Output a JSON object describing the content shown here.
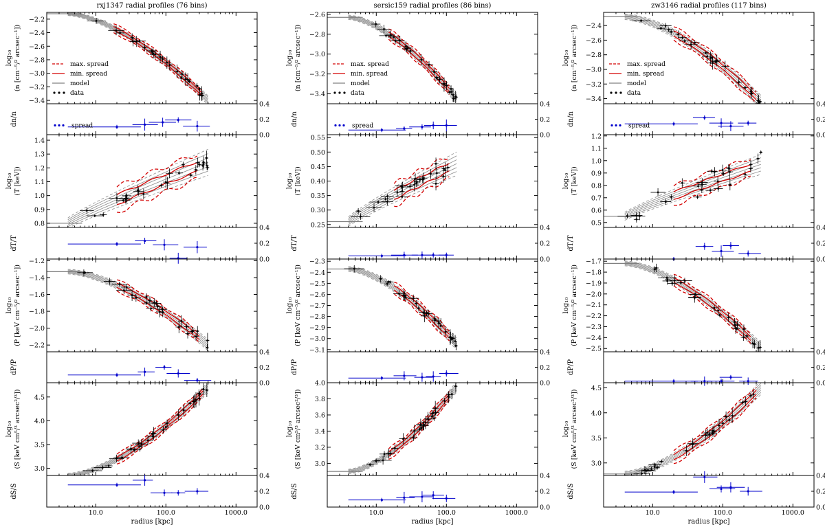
{
  "figure": {
    "xlabel": "radius [kpc]",
    "xticks": [
      "10.0",
      "100.0",
      "1000.0"
    ],
    "rows": [
      {
        "key": "n",
        "ylabel1": "log₁₀",
        "ylabel2": "(n [cm⁻⁵/² arcsec⁻¹])",
        "resid_label": "dn/n"
      },
      {
        "key": "T",
        "ylabel1": "log₁₀",
        "ylabel2": "(T [keV])",
        "resid_label": "dT/T"
      },
      {
        "key": "P",
        "ylabel1": "log₁₀",
        "ylabel2": "(P [keV cm⁻⁵/² arcsec⁻¹])",
        "resid_label": "dP/P"
      },
      {
        "key": "S",
        "ylabel1": "log₁₀",
        "ylabel2": "(S [keV cm⁵/³ arcsec²/³])",
        "resid_label": "dS/S"
      }
    ],
    "resid_ticks": [
      "0.0",
      "0.2",
      "0.4"
    ],
    "legend": {
      "max_spread": "max. spread",
      "min_spread": "min. spread",
      "model": "model",
      "data": "data",
      "spread": "spread"
    },
    "colors": {
      "data": "#000000",
      "model": "#808080",
      "spread_line": "#d40000",
      "resid": "#0000cc"
    }
  },
  "chart_data": [
    {
      "type": "line",
      "title": "rxj1347 radial profiles (76 bins)",
      "xscale": "log",
      "xlim": [
        2,
        2000
      ],
      "rmin": 4,
      "rmax": 400,
      "panels": {
        "n": {
          "ylim": [
            -3.45,
            -2.1
          ],
          "yticks": [
            -2.2,
            -2.4,
            -2.6,
            -2.8,
            -3.0,
            -3.2,
            -3.4
          ],
          "start": -2.12,
          "end": -3.4,
          "core": 20,
          "spread": 0.05,
          "scatter": 0.04,
          "reds": [
            [
              18,
              320
            ]
          ],
          "resid": [
            [
              20,
              0.1
            ],
            [
              50,
              0.13
            ],
            [
              90,
              0.16
            ],
            [
              150,
              0.19
            ],
            [
              280,
              0.11
            ]
          ]
        },
        "T": {
          "ylim": [
            0.77,
            1.44
          ],
          "yticks": [
            0.8,
            0.9,
            1.0,
            1.1,
            1.2,
            1.3,
            1.4
          ],
          "start": 0.8,
          "end": 1.24,
          "core": 60,
          "spread": 0.07,
          "scatter": 0.06,
          "reds": [
            [
              20,
              280
            ]
          ],
          "resid": [
            [
              20,
              0.19
            ],
            [
              50,
              0.23
            ],
            [
              95,
              0.18
            ],
            [
              150,
              0.01
            ],
            [
              280,
              0.15
            ]
          ]
        },
        "P": {
          "ylim": [
            -2.28,
            -1.18
          ],
          "yticks": [
            -1.2,
            -1.4,
            -1.6,
            -1.8,
            -2.0,
            -2.2
          ],
          "start": -1.33,
          "end": -2.2,
          "core": 90,
          "spread": 0.05,
          "scatter": 0.05,
          "reds": [
            [
              20,
              300
            ]
          ],
          "resid": [
            [
              20,
              0.1
            ],
            [
              50,
              0.14
            ],
            [
              95,
              0.2
            ],
            [
              150,
              0.12
            ],
            [
              280,
              0.03
            ]
          ]
        },
        "S": {
          "ylim": [
            2.85,
            4.8
          ],
          "yticks": [
            3.0,
            3.5,
            4.0,
            4.5
          ],
          "start": 2.85,
          "end": 4.7,
          "core": 15,
          "spread": 0.08,
          "scatter": 0.06,
          "reds": [
            [
              20,
              340
            ]
          ],
          "resid": [
            [
              20,
              0.28
            ],
            [
              50,
              0.34
            ],
            [
              95,
              0.18
            ],
            [
              150,
              0.18
            ],
            [
              280,
              0.2
            ]
          ]
        }
      }
    },
    {
      "type": "line",
      "title": "sersic159 radial profiles (86 bins)",
      "xscale": "log",
      "xlim": [
        2,
        2000
      ],
      "rmin": 4,
      "rmax": 140,
      "panels": {
        "n": {
          "ylim": [
            -3.5,
            -2.58
          ],
          "yticks": [
            -2.6,
            -2.8,
            -3.0,
            -3.2,
            -3.4
          ],
          "start": -2.63,
          "end": -3.45,
          "core": 8,
          "spread": 0.04,
          "scatter": 0.03,
          "reds": [
            [
              15,
              110
            ]
          ],
          "resid": [
            [
              12,
              0.06
            ],
            [
              25,
              0.08
            ],
            [
              45,
              0.1
            ],
            [
              65,
              0.12
            ],
            [
              100,
              0.12
            ]
          ]
        },
        "T": {
          "ylim": [
            0.24,
            0.56
          ],
          "yticks": [
            0.25,
            0.3,
            0.35,
            0.4,
            0.45,
            0.5,
            0.55
          ],
          "start": 0.26,
          "end": 0.46,
          "core": 30,
          "spread": 0.03,
          "scatter": 0.03,
          "reds": [
            [
              18,
              110
            ]
          ],
          "resid": [
            [
              12,
              0.04
            ],
            [
              25,
              0.05
            ],
            [
              45,
              0.05
            ],
            [
              65,
              0.05
            ],
            [
              100,
              0.05
            ]
          ]
        },
        "P": {
          "ylim": [
            -3.12,
            -2.28
          ],
          "yticks": [
            -2.3,
            -2.4,
            -2.5,
            -2.6,
            -2.7,
            -2.8,
            -2.9,
            -3.0,
            -3.1
          ],
          "start": -2.37,
          "end": -3.05,
          "core": 25,
          "spread": 0.04,
          "scatter": 0.03,
          "reds": [
            [
              18,
              110
            ]
          ],
          "resid": [
            [
              12,
              0.06
            ],
            [
              25,
              0.09
            ],
            [
              45,
              0.07
            ],
            [
              65,
              0.08
            ],
            [
              100,
              0.12
            ]
          ]
        },
        "S": {
          "ylim": [
            2.85,
            4.0
          ],
          "yticks": [
            3.0,
            3.2,
            3.4,
            3.6,
            3.8,
            4.0
          ],
          "start": 2.9,
          "end": 3.95,
          "core": 6,
          "spread": 0.05,
          "scatter": 0.04,
          "reds": [
            [
              15,
              110
            ]
          ],
          "resid": [
            [
              12,
              0.09
            ],
            [
              25,
              0.12
            ],
            [
              45,
              0.13
            ],
            [
              65,
              0.15
            ],
            [
              100,
              0.11
            ]
          ]
        }
      }
    },
    {
      "type": "line",
      "title": "zw3146 radial profiles (117 bins)",
      "xscale": "log",
      "xlim": [
        2,
        2000
      ],
      "rmin": 4,
      "rmax": 350,
      "panels": {
        "n": {
          "ylim": [
            -3.47,
            -2.22
          ],
          "yticks": [
            -2.4,
            -2.6,
            -2.8,
            -3.0,
            -3.2,
            -3.4
          ],
          "start": -2.28,
          "end": -3.45,
          "core": 25,
          "spread": 0.07,
          "scatter": 0.04,
          "reds": [
            [
              20,
              300
            ]
          ],
          "resid": [
            [
              20,
              0.14
            ],
            [
              55,
              0.22
            ],
            [
              95,
              0.15
            ],
            [
              130,
              0.11
            ],
            [
              230,
              0.15
            ]
          ]
        },
        "T": {
          "ylim": [
            0.46,
            1.21
          ],
          "yticks": [
            0.5,
            0.6,
            0.7,
            0.8,
            0.9,
            1.0,
            1.1,
            1.2
          ],
          "start": 0.55,
          "end": 0.97,
          "core": 60,
          "spread": 0.06,
          "scatter": 0.07,
          "reds": [
            [
              20,
              250
            ]
          ],
          "resid": [
            [
              20,
              0.0
            ],
            [
              55,
              0.16
            ],
            [
              95,
              0.1
            ],
            [
              130,
              0.17
            ],
            [
              230,
              0.07
            ]
          ]
        },
        "P": {
          "ylim": [
            -2.53,
            -1.68
          ],
          "yticks": [
            -1.7,
            -1.8,
            -1.9,
            -2.0,
            -2.1,
            -2.2,
            -2.3,
            -2.4,
            -2.5
          ],
          "start": -1.72,
          "end": -2.5,
          "core": 100,
          "spread": 0.04,
          "scatter": 0.05,
          "reds": [
            [
              20,
              250
            ]
          ],
          "resid": [
            [
              20,
              0.02
            ],
            [
              55,
              0.02
            ],
            [
              95,
              0.02
            ],
            [
              130,
              0.07
            ],
            [
              230,
              0.02
            ]
          ]
        },
        "S": {
          "ylim": [
            2.75,
            4.6
          ],
          "yticks": [
            3.0,
            3.5,
            4.0,
            4.5
          ],
          "start": 2.78,
          "end": 4.5,
          "core": 15,
          "spread": 0.1,
          "scatter": 0.06,
          "reds": [
            [
              20,
              300
            ]
          ],
          "resid": [
            [
              20,
              0.19
            ],
            [
              55,
              0.38
            ],
            [
              95,
              0.23
            ],
            [
              130,
              0.25
            ],
            [
              230,
              0.2
            ]
          ]
        }
      }
    }
  ]
}
